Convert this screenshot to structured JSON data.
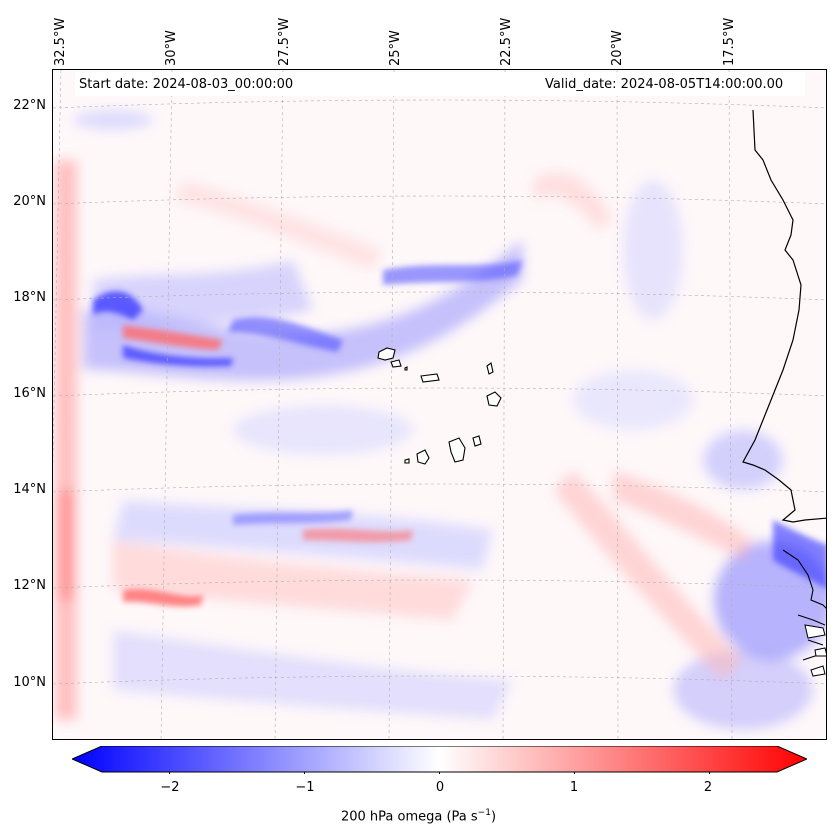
{
  "map": {
    "start_date": "Start date: 2024-08-03_00:00:00",
    "valid_date": "Valid_date: 2024-08-05T14:00:00.00",
    "lon_labels": [
      "32.5°W",
      "30°W",
      "27.5°W",
      "25°W",
      "22.5°W",
      "20°W",
      "17.5°W"
    ],
    "lat_labels": [
      "22°N",
      "20°N",
      "18°N",
      "16°N",
      "14°N",
      "12°N",
      "10°N"
    ],
    "field": "200 hPa omega",
    "colors": {
      "negative": "#0000ff",
      "zero": "#ffffff",
      "positive": "#ff0000",
      "coast": "#000000"
    }
  },
  "colorbar": {
    "label": "200 hPa omega (Pa s",
    "label_unit_sup": "−1",
    "label_close": ")",
    "ticks": [
      "−2",
      "−1",
      "0",
      "1",
      "2"
    ],
    "tick_values": [
      -2,
      -1,
      0,
      1,
      2
    ],
    "range": [
      -2.5,
      2.5
    ]
  }
}
